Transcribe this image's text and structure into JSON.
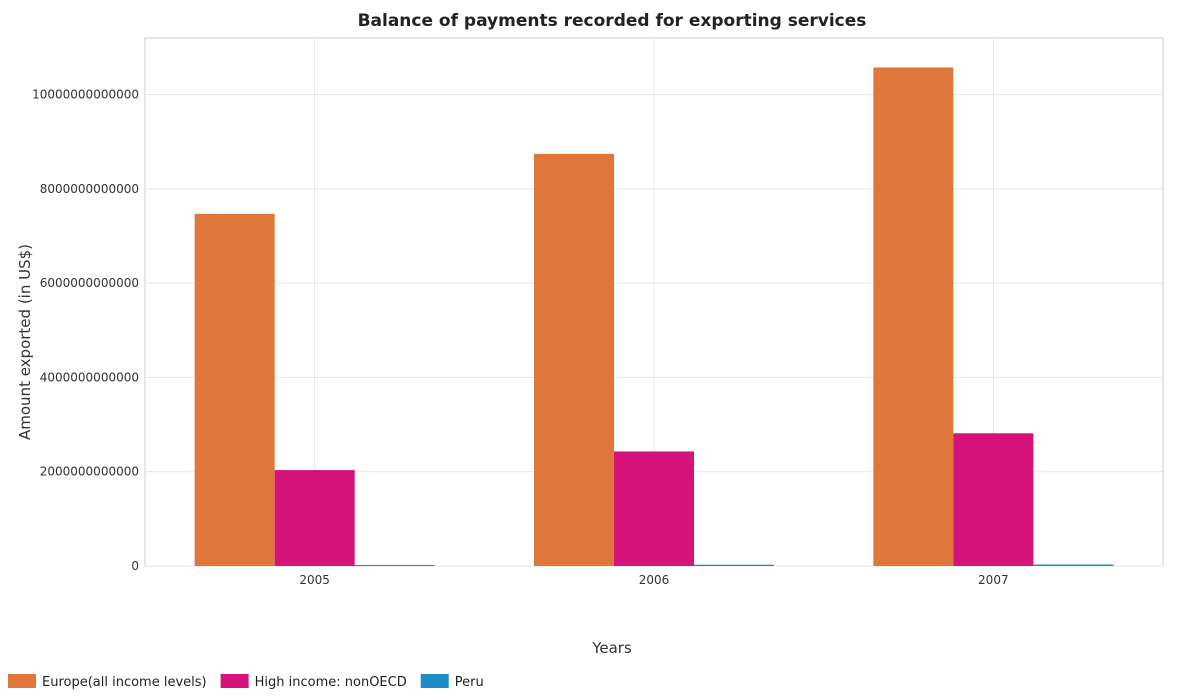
{
  "chart_data": {
    "type": "bar",
    "title": "Balance of payments recorded for exporting services",
    "xlabel": "Years",
    "ylabel": "Amount exported (in US$)",
    "categories": [
      "2005",
      "2006",
      "2007"
    ],
    "series": [
      {
        "name": "Europe(all income levels)",
        "color": "#e0773a",
        "values": [
          7470000000000,
          8740000000000,
          10575000000000
        ]
      },
      {
        "name": "High income: nonOECD",
        "color": "#d5137a",
        "values": [
          2035000000000,
          2430000000000,
          2815000000000
        ]
      },
      {
        "name": "Peru",
        "color": "#1f8cc6",
        "values": [
          22000000000,
          27000000000,
          32000000000
        ]
      }
    ],
    "ylim": [
      0,
      11200000000000
    ],
    "yticks": [
      0,
      2000000000000,
      4000000000000,
      6000000000000,
      8000000000000,
      10000000000000
    ],
    "ytick_labels": [
      "0",
      "2000000000000",
      "4000000000000",
      "6000000000000",
      "8000000000000",
      "10000000000000"
    ],
    "grid": true,
    "legend_position": "bottom-left"
  }
}
